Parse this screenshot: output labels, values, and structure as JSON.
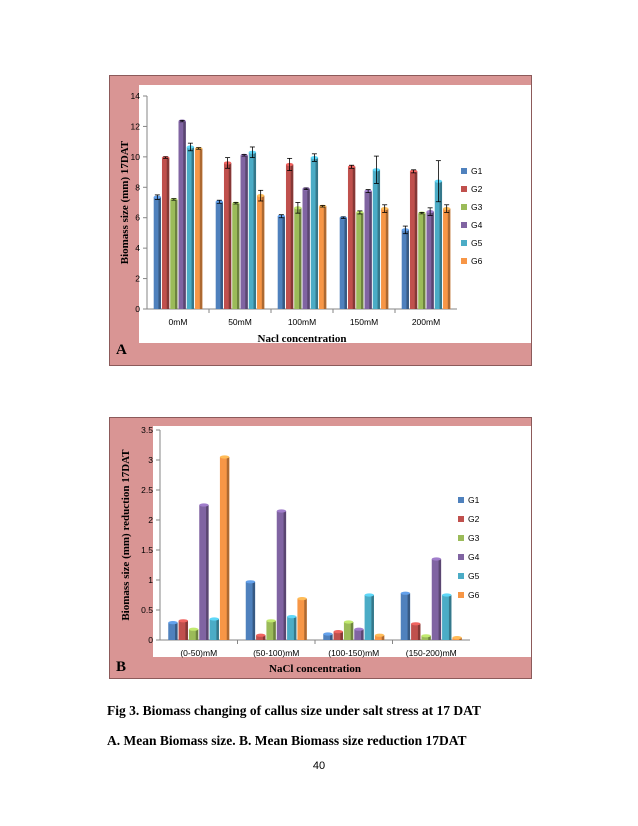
{
  "chart_data": [
    {
      "type": "bar",
      "panel_label": "A",
      "title": "",
      "xlabel": "Nacl concentration",
      "ylabel": "Biomass size (mm) 17DAT",
      "categories": [
        "0mM",
        "50mM",
        "100mM",
        "150mM",
        "200mM"
      ],
      "ylim": [
        0,
        14
      ],
      "yticks": [
        0,
        2,
        4,
        6,
        8,
        10,
        12,
        14
      ],
      "grid": false,
      "legend": "right",
      "error_bars": true,
      "series": [
        {
          "name": "G1",
          "color": "#4f81bd",
          "values": [
            7.35,
            7.05,
            6.1,
            6.0,
            5.2
          ],
          "errors": [
            0.15,
            0.1,
            0.1,
            0.05,
            0.25
          ]
        },
        {
          "name": "G2",
          "color": "#c0504d",
          "values": [
            9.95,
            9.6,
            9.5,
            9.35,
            9.05
          ],
          "errors": [
            0.05,
            0.35,
            0.4,
            0.1,
            0.1
          ]
        },
        {
          "name": "G3",
          "color": "#9bbb59",
          "values": [
            7.2,
            6.95,
            6.65,
            6.35,
            6.3
          ],
          "errors": [
            0.05,
            0.05,
            0.35,
            0.1,
            0.05
          ]
        },
        {
          "name": "G4",
          "color": "#8064a2",
          "values": [
            12.35,
            10.1,
            7.9,
            7.75,
            6.4
          ],
          "errors": [
            0.05,
            0.05,
            0.05,
            0.1,
            0.25
          ]
        },
        {
          "name": "G5",
          "color": "#4bacc6",
          "values": [
            10.65,
            10.3,
            9.95,
            9.15,
            8.4
          ],
          "errors": [
            0.25,
            0.35,
            0.25,
            0.9,
            1.35
          ]
        },
        {
          "name": "G6",
          "color": "#f79646",
          "values": [
            10.55,
            7.45,
            6.75,
            6.6,
            6.6
          ],
          "errors": [
            0.05,
            0.35,
            0.05,
            0.25,
            0.25
          ]
        }
      ]
    },
    {
      "type": "bar",
      "panel_label": "B",
      "title": "",
      "xlabel": "NaCl concentration",
      "ylabel": "Biomass size (mm) reduction 17DAT",
      "categories": [
        "(0-50)mM",
        "(50-100)mM",
        "(100-150)mM",
        "(150-200)mM"
      ],
      "ylim": [
        0,
        3.5
      ],
      "yticks": [
        "0",
        "0.5",
        "1",
        "1.5",
        "2",
        "2.5",
        "3",
        "3.5"
      ],
      "grid": false,
      "legend": "right",
      "series": [
        {
          "name": "G1",
          "color": "#4f81bd",
          "values": [
            0.29,
            0.97,
            0.1,
            0.78
          ]
        },
        {
          "name": "G2",
          "color": "#c0504d",
          "values": [
            0.32,
            0.08,
            0.14,
            0.27
          ]
        },
        {
          "name": "G3",
          "color": "#9bbb59",
          "values": [
            0.18,
            0.32,
            0.3,
            0.07
          ]
        },
        {
          "name": "G4",
          "color": "#8064a2",
          "values": [
            2.25,
            2.15,
            0.18,
            1.35
          ]
        },
        {
          "name": "G5",
          "color": "#4bacc6",
          "values": [
            0.35,
            0.39,
            0.75,
            0.75
          ]
        },
        {
          "name": "G6",
          "color": "#f79646",
          "values": [
            3.05,
            0.69,
            0.08,
            0.04
          ]
        }
      ]
    }
  ],
  "caption": {
    "line1": "Fig 3. Biomass changing of callus size under salt stress at 17 DAT",
    "line2": "A. Mean Biomass size. B. Mean Biomass size reduction 17DAT"
  },
  "page_number": "40"
}
